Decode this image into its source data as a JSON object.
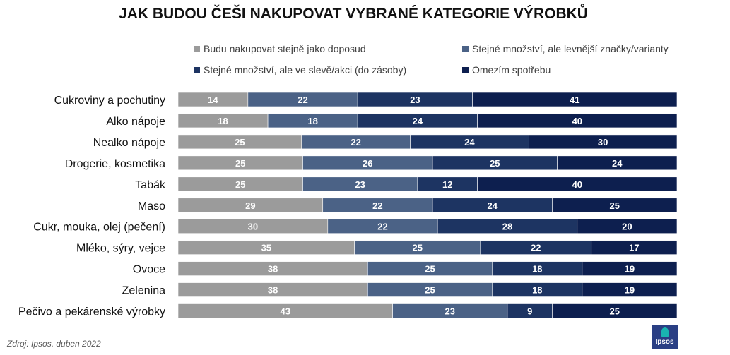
{
  "chart_data": {
    "type": "bar",
    "orientation": "horizontal",
    "stacked": true,
    "title": "JAK BUDOU ČEŠI NAKUPOVAT VYBRANÉ KATEGORIE VÝROBKŮ",
    "categories": [
      "Cukroviny a pochutiny",
      "Alko nápoje",
      "Nealko nápoje",
      "Drogerie, kosmetika",
      "Tabák",
      "Maso",
      "Cukr, mouka, olej (pečení)",
      "Mléko, sýry, vejce",
      "Ovoce",
      "Zelenina",
      "Pečivo a pekárenské výrobky"
    ],
    "series": [
      {
        "name": "Budu nakupovat stejně jako doposud",
        "color": "#9b9b9b",
        "values": [
          14,
          18,
          25,
          25,
          25,
          29,
          30,
          35,
          38,
          38,
          43
        ]
      },
      {
        "name": "Stejné množství, ale levnější značky/varianty",
        "color": "#4b6286",
        "values": [
          22,
          18,
          22,
          26,
          23,
          22,
          22,
          25,
          25,
          25,
          23
        ]
      },
      {
        "name": "Stejné množství, ale ve slevě/akci (do zásoby)",
        "color": "#1d3462",
        "values": [
          23,
          24,
          24,
          25,
          12,
          24,
          28,
          22,
          18,
          18,
          9
        ]
      },
      {
        "name": "Omezím spotřebu",
        "color": "#0d1f4f",
        "values": [
          41,
          40,
          30,
          24,
          40,
          25,
          20,
          17,
          19,
          19,
          25
        ]
      }
    ],
    "legend_position": "top",
    "grid": false
  },
  "source": "Zdroj: Ipsos, duben 2022",
  "logo": {
    "text": "Ipsos",
    "colors": {
      "background": "#2a3f84",
      "accent": "#19b5b1"
    }
  }
}
